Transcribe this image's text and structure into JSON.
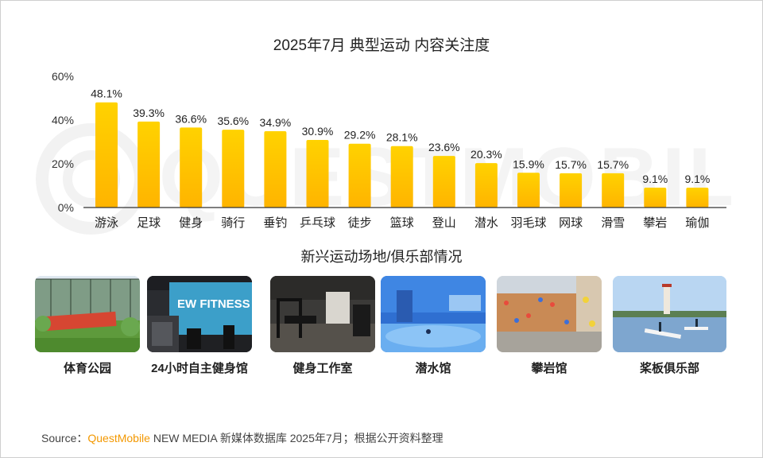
{
  "chart_data": {
    "type": "bar",
    "title": "2025年7月 典型运动 内容关注度",
    "categories": [
      "游泳",
      "足球",
      "健身",
      "骑行",
      "垂钓",
      "乒乓球",
      "徒步",
      "篮球",
      "登山",
      "潜水",
      "羽毛球",
      "网球",
      "滑雪",
      "攀岩",
      "瑜伽"
    ],
    "values": [
      48.1,
      39.3,
      36.6,
      35.6,
      34.9,
      30.9,
      29.2,
      28.1,
      23.6,
      20.3,
      15.9,
      15.7,
      15.7,
      9.1,
      9.1
    ],
    "data_labels": [
      "48.1%",
      "39.3%",
      "36.6%",
      "35.6%",
      "34.9%",
      "30.9%",
      "29.2%",
      "28.1%",
      "23.6%",
      "20.3%",
      "15.9%",
      "15.7%",
      "15.7%",
      "9.1%",
      "9.1%"
    ],
    "yticks": [
      "0%",
      "20%",
      "40%",
      "60%"
    ],
    "ytick_values": [
      0,
      20,
      40,
      60
    ],
    "ylim": [
      0,
      60
    ],
    "xlabel": "",
    "ylabel": "",
    "grid": false,
    "bar_color_top": "#FFD200",
    "bar_color_bottom": "#FFB400"
  },
  "venues": {
    "title": "新兴运动场地/俱乐部情况",
    "items": [
      {
        "label": "体育公园"
      },
      {
        "label": "24小时自主健身馆"
      },
      {
        "label": "健身工作室"
      },
      {
        "label": "潜水馆"
      },
      {
        "label": "攀岩馆"
      },
      {
        "label": "桨板俱乐部"
      }
    ],
    "photo_texts": {
      "fitness_sign": "EW FITNESS"
    }
  },
  "source": {
    "prefix": "Source：",
    "brand": "QuestMobile",
    "rest": " NEW MEDIA 新媒体数据库 2025年7月；根据公开资料整理"
  },
  "watermark": "QUESTMOBILE"
}
